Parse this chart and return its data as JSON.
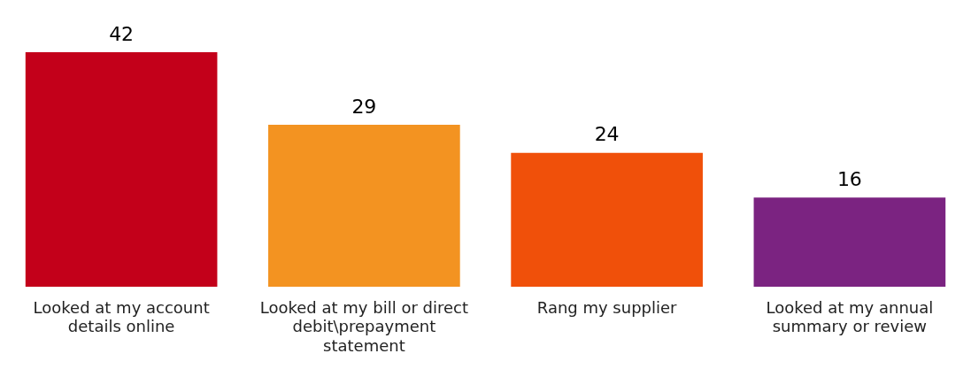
{
  "chart_data": {
    "type": "bar",
    "categories": [
      "Looked at my account details online",
      "Looked at my bill or direct debit\\prepayment statement",
      "Rang my supplier",
      "Looked at my annual summary or review"
    ],
    "values": [
      42,
      29,
      24,
      16
    ],
    "colors": [
      "#c3001a",
      "#f39321",
      "#f0500a",
      "#7b2381"
    ],
    "data_labels": true,
    "grid": false,
    "legend": false
  }
}
